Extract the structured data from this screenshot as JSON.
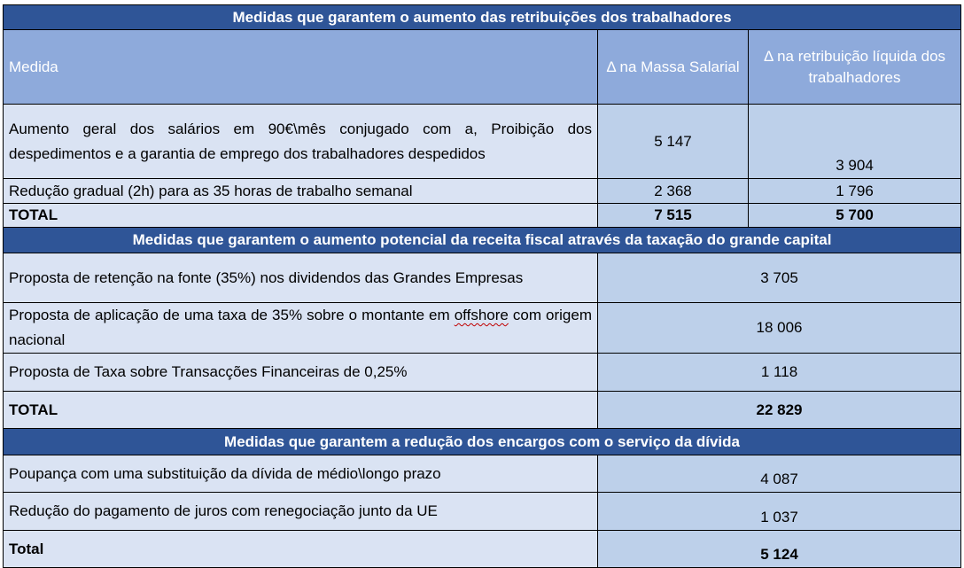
{
  "section1": {
    "title": "Medidas que garantem o aumento das retribuições dos trabalhadores",
    "header": {
      "medida": "Medida",
      "col_massa": "Δ na Massa Salarial",
      "col_liquida": "Δ na retribuição líquida dos trabalhadores"
    },
    "rows": [
      {
        "desc": "Aumento geral dos salários em 90€\\mês conjugado com a, Proibição dos despedimentos e a garantia de emprego dos trabalhadores despedidos",
        "massa": "5 147",
        "liquida": "3 904"
      },
      {
        "desc": "Redução gradual (2h) para as 35 horas de trabalho semanal",
        "massa": "2 368",
        "liquida": "1 796"
      }
    ],
    "total": {
      "label": "TOTAL",
      "massa": "7 515",
      "liquida": "5 700"
    }
  },
  "section2": {
    "title": "Medidas que garantem o aumento potencial da receita fiscal através da taxação do grande capital",
    "rows": [
      {
        "desc": "Proposta de retenção na fonte (35%) nos dividendos das Grandes Empresas",
        "value": "3 705"
      },
      {
        "desc_pre": "Proposta de aplicação de uma taxa de 35% sobre o montante em",
        "desc_flag": "offshore",
        "desc_post": " com origem nacional",
        "value": "18 006"
      },
      {
        "desc": "Proposta de Taxa sobre Transacções Financeiras de 0,25%",
        "value": "1 118"
      }
    ],
    "total": {
      "label": "TOTAL",
      "value": "22 829"
    }
  },
  "section3": {
    "title": "Medidas que garantem a redução dos encargos com o serviço da dívida",
    "rows": [
      {
        "desc": "Poupança com uma substituição da dívida de médio\\longo prazo",
        "value": "4 087"
      },
      {
        "desc": "Redução do pagamento de juros com renegociação junto da UE",
        "value": "1 037"
      }
    ],
    "total": {
      "label": "Total",
      "value": "5 124"
    }
  }
}
